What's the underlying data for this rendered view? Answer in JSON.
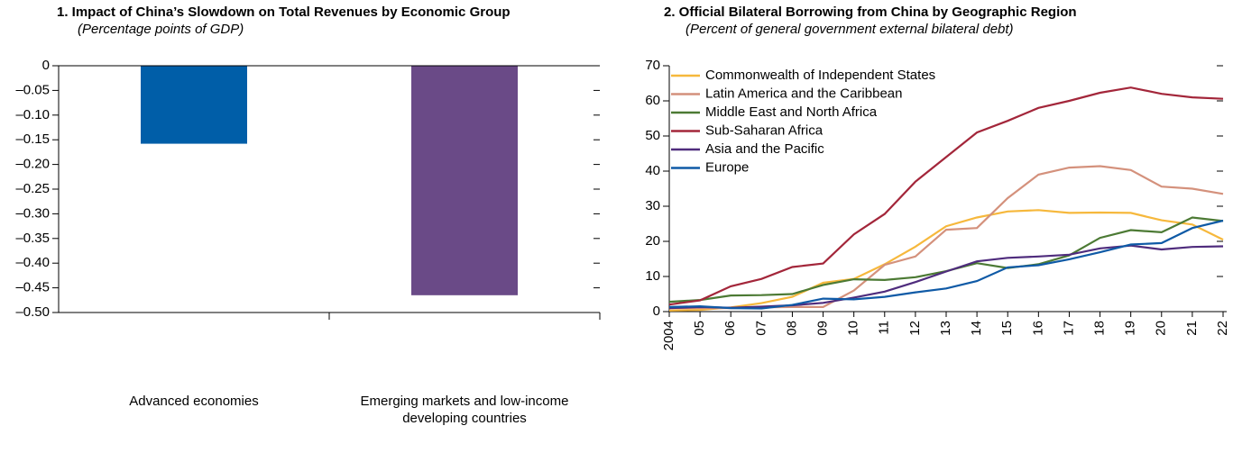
{
  "chart_data": [
    {
      "type": "bar",
      "title": "1. Impact of China’s Slowdown on Total Revenues by Economic Group",
      "subtitle": "(Percentage points of GDP)",
      "categories": [
        "Advanced economies",
        "Emerging markets and low-income developing countries"
      ],
      "values": [
        -0.158,
        -0.465
      ],
      "colors": [
        "#005ea8",
        "#6a4a87"
      ],
      "ylim": [
        -0.5,
        0
      ],
      "yticks": [
        0,
        {
          "value": -0.05,
          "label": "–0.05"
        },
        {
          "value": -0.1,
          "label": "–0.10"
        },
        {
          "value": -0.15,
          "label": "–0.15"
        },
        {
          "value": -0.2,
          "label": "–0.20"
        },
        {
          "value": -0.25,
          "label": "–0.25"
        },
        {
          "value": -0.3,
          "label": "–0.30"
        },
        {
          "value": -0.35,
          "label": "–0.35"
        },
        {
          "value": -0.4,
          "label": "–0.40"
        },
        {
          "value": -0.45,
          "label": "–0.45"
        },
        {
          "value": -0.5,
          "label": "–0.50"
        }
      ]
    },
    {
      "type": "line",
      "title": "2. Official Bilateral Borrowing from China by Geographic Region",
      "subtitle": "(Percent of general government external bilateral debt)",
      "x": [
        2004,
        2005,
        2006,
        2007,
        2008,
        2009,
        2010,
        2011,
        2012,
        2013,
        2014,
        2015,
        2016,
        2017,
        2018,
        2019,
        2020,
        2021,
        2022
      ],
      "xlim": [
        2004,
        2022
      ],
      "xticks": [
        2004,
        {
          "value": 2005,
          "label": "05"
        },
        {
          "value": 2006,
          "label": "06"
        },
        {
          "value": 2007,
          "label": "07"
        },
        {
          "value": 2008,
          "label": "08"
        },
        {
          "value": 2009,
          "label": "09"
        },
        {
          "value": 2010,
          "label": "10"
        },
        {
          "value": 2011,
          "label": "11"
        },
        {
          "value": 2012,
          "label": "12"
        },
        {
          "value": 2013,
          "label": "13"
        },
        {
          "value": 2014,
          "label": "14"
        },
        {
          "value": 2015,
          "label": "15"
        },
        {
          "value": 2016,
          "label": "16"
        },
        {
          "value": 2017,
          "label": "17"
        },
        {
          "value": 2018,
          "label": "18"
        },
        {
          "value": 2019,
          "label": "19"
        },
        {
          "value": 2020,
          "label": "20"
        },
        {
          "value": 2021,
          "label": "21"
        },
        {
          "value": 2022,
          "label": "22"
        }
      ],
      "ylim": [
        0,
        70
      ],
      "yticks": [
        0,
        10,
        20,
        30,
        40,
        50,
        60,
        70
      ],
      "legend": "upper left",
      "series": [
        {
          "name": "Commonwealth of Independent States",
          "color": "#f6b83c",
          "values": [
            0.3,
            0.5,
            1.2,
            2.4,
            4.2,
            8.2,
            9.3,
            13.5,
            18.5,
            24.3,
            26.8,
            28.5,
            28.9,
            28.1,
            28.2,
            28.1,
            26.0,
            24.8,
            20.5
          ]
        },
        {
          "name": "Latin America and the Caribbean",
          "color": "#d4917c",
          "values": [
            1.0,
            1.0,
            1.0,
            1.2,
            1.3,
            1.3,
            6.0,
            13.3,
            15.7,
            23.3,
            23.8,
            32.3,
            39.0,
            41.0,
            41.4,
            40.3,
            35.6,
            35.0,
            33.5
          ]
        },
        {
          "name": "Middle East and North Africa",
          "color": "#4c7a34",
          "values": [
            2.8,
            3.3,
            4.6,
            4.7,
            5.0,
            7.6,
            9.2,
            9.0,
            9.8,
            11.5,
            13.8,
            12.4,
            13.5,
            16.0,
            21.0,
            23.2,
            22.6,
            26.8,
            25.8
          ]
        },
        {
          "name": "Sub-Saharan Africa",
          "color": "#a3263a",
          "values": [
            2.0,
            3.2,
            7.2,
            9.3,
            12.7,
            13.7,
            22.0,
            27.8,
            37.0,
            44.0,
            51.0,
            54.3,
            58.0,
            60.0,
            62.3,
            63.8,
            62.0,
            61.0,
            60.6
          ]
        },
        {
          "name": "Asia and the Pacific",
          "color": "#4f2c7d",
          "values": [
            1.0,
            1.3,
            1.1,
            1.4,
            1.8,
            2.5,
            4.0,
            5.7,
            8.4,
            11.4,
            14.3,
            15.3,
            15.7,
            16.2,
            18.0,
            18.8,
            17.7,
            18.4,
            18.6
          ]
        },
        {
          "name": "Europe",
          "color": "#0f5aa6",
          "values": [
            1.3,
            1.5,
            1.0,
            0.9,
            1.9,
            3.7,
            3.5,
            4.2,
            5.5,
            6.6,
            8.7,
            12.6,
            13.2,
            14.9,
            16.9,
            19.1,
            19.5,
            23.8,
            25.9
          ]
        }
      ]
    }
  ]
}
